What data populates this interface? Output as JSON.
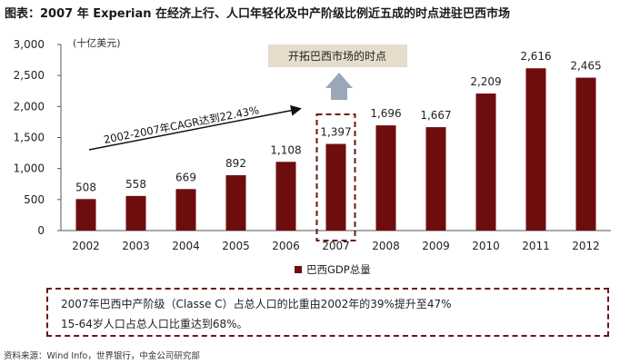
{
  "title": "图表：2007 年 Experian 在经济上行、人口年轻化及中产阶级比例近五成的时点进驻巴西市场",
  "chart_data": {
    "type": "bar",
    "unit_label": "(十亿美元)",
    "categories": [
      "2002",
      "2003",
      "2004",
      "2005",
      "2006",
      "2007",
      "2008",
      "2009",
      "2010",
      "2011",
      "2012"
    ],
    "series": [
      {
        "name": "巴西GDP总量",
        "values": [
          508,
          558,
          669,
          892,
          1108,
          1397,
          1696,
          1667,
          2209,
          2616,
          2465
        ]
      }
    ],
    "value_labels": [
      "508",
      "558",
      "669",
      "892",
      "1,108",
      "1,397",
      "1,696",
      "1,667",
      "2,209",
      "2,616",
      "2,465"
    ],
    "yticks": [
      "0",
      "500",
      "1,000",
      "1,500",
      "2,000",
      "2,500",
      "3,000"
    ],
    "ylim": [
      0,
      3000
    ],
    "bar_color": "#6e0d0d",
    "highlight_category": "2007",
    "highlight_color": "#6e1414",
    "annotation_cagr": "2002-2007年CAGR达到22.43%",
    "callout_text": "开拓巴西市场的时点",
    "callout_bg": "#e6dccb",
    "legend": "巴西GDP总量",
    "legend_position": "bottom"
  },
  "note": {
    "line1": "2007年巴西中产阶级（Classe C）占总人口的比重由2002年的39%提升至47%",
    "line2": "15-64岁人口占总人口比重达到68%。"
  },
  "source": "资料来源：Wind Info，世界银行，中金公司研究部"
}
